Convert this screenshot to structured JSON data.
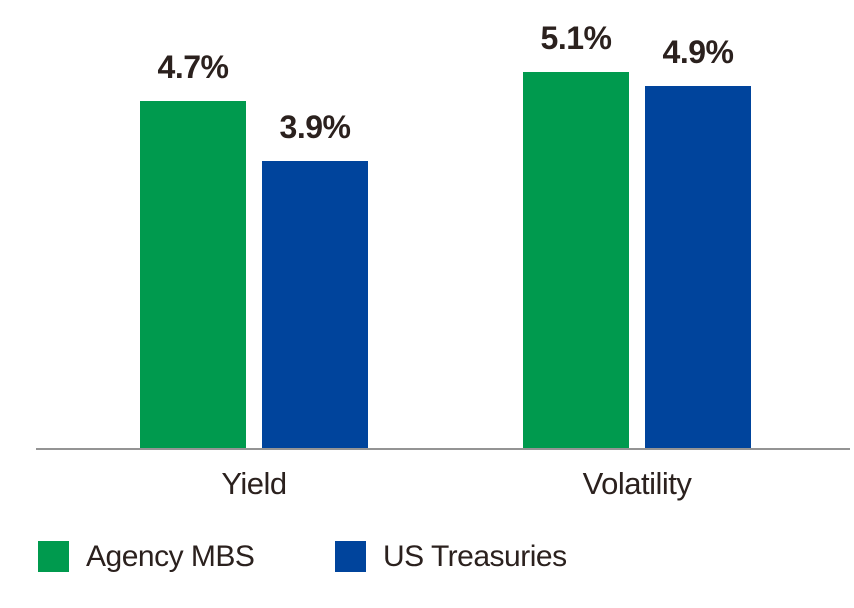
{
  "chart_data": {
    "type": "bar",
    "categories": [
      "Yield",
      "Volatility"
    ],
    "series": [
      {
        "name": "Agency MBS",
        "color": "#009A4E",
        "values": [
          4.7,
          5.1
        ],
        "value_labels": [
          "4.7%",
          "5.1%"
        ]
      },
      {
        "name": "US Treasuries",
        "color": "#00449C",
        "values": [
          3.9,
          4.9
        ],
        "value_labels": [
          "3.9%",
          "4.9%"
        ]
      }
    ],
    "title": "",
    "xlabel": "",
    "ylabel": "",
    "ylim": [
      0,
      6
    ],
    "grid": false,
    "value_label_format": "percent",
    "legend_position": "bottom-left",
    "axis_line_color": "#949494",
    "text_color": "#2B211E"
  },
  "legend": {
    "items": [
      {
        "label": "Agency MBS",
        "color": "#009A4E"
      },
      {
        "label": "US Treasuries",
        "color": "#00449C"
      }
    ]
  }
}
